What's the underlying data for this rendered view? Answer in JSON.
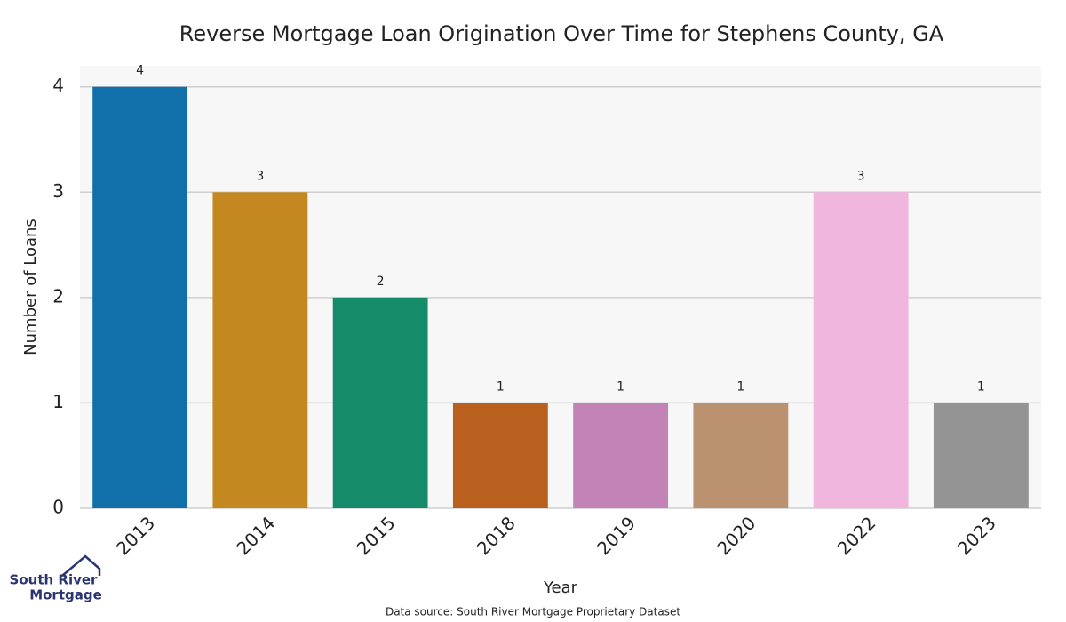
{
  "chart_data": {
    "type": "bar",
    "title": "Reverse Mortgage Loan Origination Over Time for Stephens County, GA",
    "x_label": "Year",
    "y_label": "Number of Loans",
    "categories": [
      "2013",
      "2014",
      "2015",
      "2018",
      "2019",
      "2020",
      "2022",
      "2023"
    ],
    "values": [
      4,
      3,
      2,
      1,
      1,
      1,
      3,
      1
    ],
    "colors": [
      "#1170aa",
      "#c38820",
      "#168b6a",
      "#b9601e",
      "#c383b6",
      "#bb9270",
      "#f0b6de",
      "#949494"
    ],
    "ylim": [
      0,
      4.2
    ],
    "yticks": [
      0,
      1,
      2,
      3,
      4
    ],
    "grid": true
  },
  "source": "Data source: South River Mortgage Proprietary Dataset",
  "logo": [
    "South River",
    "Mortgage"
  ]
}
